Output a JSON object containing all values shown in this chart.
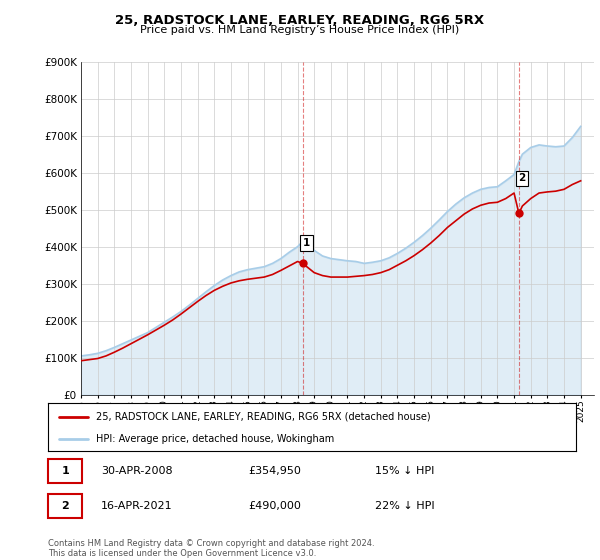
{
  "title": "25, RADSTOCK LANE, EARLEY, READING, RG6 5RX",
  "subtitle": "Price paid vs. HM Land Registry’s House Price Index (HPI)",
  "hpi_label": "HPI: Average price, detached house, Wokingham",
  "price_label": "25, RADSTOCK LANE, EARLEY, READING, RG6 5RX (detached house)",
  "footer": "Contains HM Land Registry data © Crown copyright and database right 2024.\nThis data is licensed under the Open Government Licence v3.0.",
  "sale1_date": "30-APR-2008",
  "sale1_price": 354950,
  "sale1_note": "15% ↓ HPI",
  "sale2_date": "16-APR-2021",
  "sale2_price": 490000,
  "sale2_note": "22% ↓ HPI",
  "hpi_color": "#a8cde8",
  "price_color": "#cc0000",
  "ylim": [
    0,
    900000
  ],
  "yticks": [
    0,
    100000,
    200000,
    300000,
    400000,
    500000,
    600000,
    700000,
    800000,
    900000
  ],
  "xlim_start": 1995.0,
  "xlim_end": 2025.8,
  "x_years": [
    1995.0,
    1995.5,
    1996.0,
    1996.5,
    1997.0,
    1997.5,
    1998.0,
    1998.5,
    1999.0,
    1999.5,
    2000.0,
    2000.5,
    2001.0,
    2001.5,
    2002.0,
    2002.5,
    2003.0,
    2003.5,
    2004.0,
    2004.5,
    2005.0,
    2005.5,
    2006.0,
    2006.5,
    2007.0,
    2007.5,
    2008.0,
    2008.33,
    2008.5,
    2009.0,
    2009.5,
    2010.0,
    2010.5,
    2011.0,
    2011.5,
    2012.0,
    2012.5,
    2013.0,
    2013.5,
    2014.0,
    2014.5,
    2015.0,
    2015.5,
    2016.0,
    2016.5,
    2017.0,
    2017.5,
    2018.0,
    2018.5,
    2019.0,
    2019.5,
    2020.0,
    2020.5,
    2021.0,
    2021.29,
    2021.5,
    2022.0,
    2022.5,
    2023.0,
    2023.5,
    2024.0,
    2024.5,
    2025.0
  ],
  "hpi_values": [
    105000,
    108000,
    112000,
    119000,
    128000,
    138000,
    148000,
    158000,
    168000,
    182000,
    196000,
    210000,
    225000,
    242000,
    260000,
    278000,
    295000,
    310000,
    322000,
    332000,
    338000,
    342000,
    346000,
    355000,
    368000,
    385000,
    400000,
    415000,
    410000,
    390000,
    375000,
    368000,
    365000,
    362000,
    360000,
    355000,
    358000,
    362000,
    370000,
    382000,
    396000,
    412000,
    430000,
    450000,
    472000,
    495000,
    515000,
    532000,
    545000,
    555000,
    560000,
    562000,
    578000,
    595000,
    630000,
    650000,
    668000,
    675000,
    672000,
    670000,
    672000,
    695000,
    725000
  ],
  "price_values": [
    92000,
    95000,
    98000,
    105000,
    115000,
    126000,
    138000,
    150000,
    162000,
    175000,
    188000,
    202000,
    218000,
    235000,
    252000,
    268000,
    282000,
    293000,
    302000,
    308000,
    312000,
    315000,
    318000,
    325000,
    336000,
    348000,
    360000,
    354950,
    348000,
    330000,
    322000,
    318000,
    318000,
    318000,
    320000,
    322000,
    325000,
    330000,
    338000,
    350000,
    362000,
    376000,
    392000,
    410000,
    430000,
    452000,
    470000,
    488000,
    502000,
    512000,
    518000,
    520000,
    530000,
    545000,
    490000,
    510000,
    530000,
    545000,
    548000,
    550000,
    555000,
    568000,
    578000
  ],
  "sale1_year": 2008.33,
  "sale1_price_val": 354950,
  "sale2_year": 2021.29,
  "sale2_price_val": 490000,
  "background_color": "#ffffff",
  "grid_color": "#cccccc",
  "vline_color": "#cc0000"
}
